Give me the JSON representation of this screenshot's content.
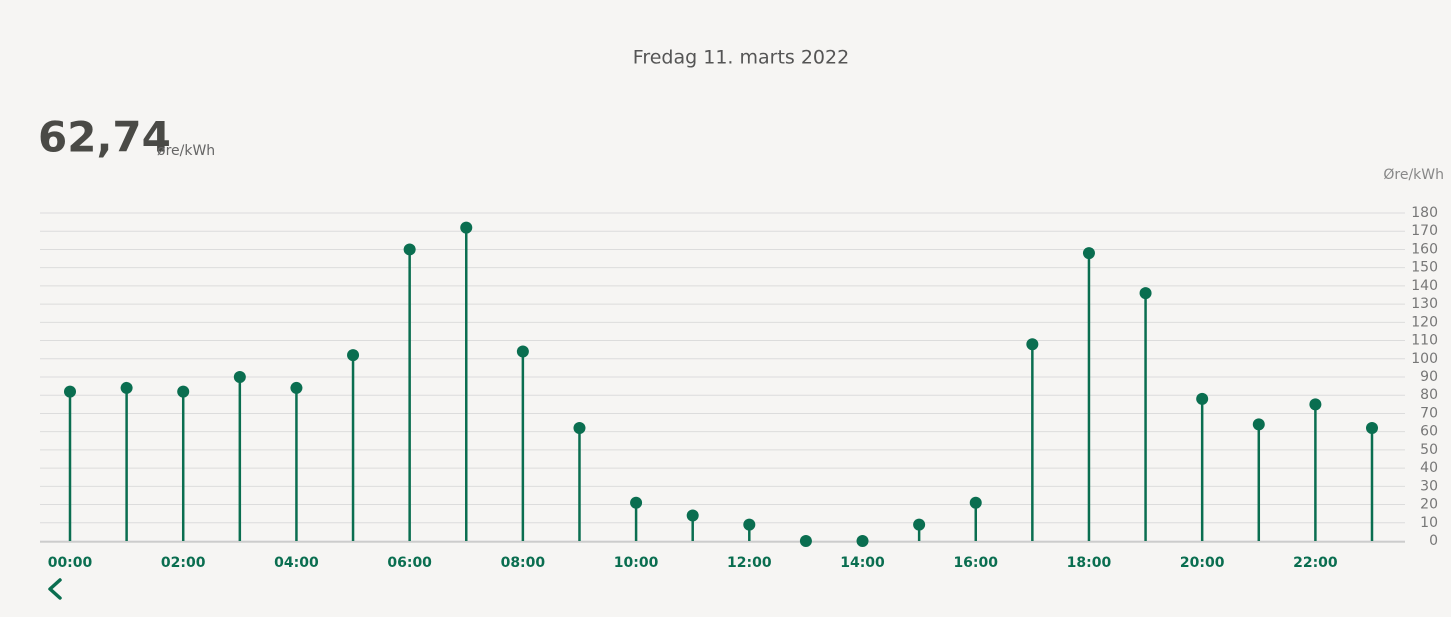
{
  "header": {
    "date": "Fredag 11. marts 2022",
    "price": "62,74",
    "unit": "øre/kWh"
  },
  "chart_data": {
    "type": "lollipop",
    "y_axis_label": "Øre/kWh",
    "categories": [
      "00:00",
      null,
      "02:00",
      null,
      "04:00",
      null,
      "06:00",
      null,
      "08:00",
      null,
      "10:00",
      null,
      "12:00",
      null,
      "14:00",
      null,
      "16:00",
      null,
      "18:00",
      null,
      "20:00",
      null,
      "22:00",
      null
    ],
    "values": [
      82,
      84,
      82,
      90,
      84,
      102,
      160,
      172,
      104,
      62,
      21,
      14,
      9,
      0,
      0,
      9,
      21,
      108,
      158,
      136,
      78,
      64,
      75,
      62
    ],
    "color": "#0a6e50",
    "ylim": [
      0,
      180
    ],
    "yticks": [
      0,
      10,
      20,
      30,
      40,
      50,
      60,
      70,
      80,
      90,
      100,
      110,
      120,
      130,
      140,
      150,
      160,
      170,
      180
    ],
    "grid": true
  }
}
